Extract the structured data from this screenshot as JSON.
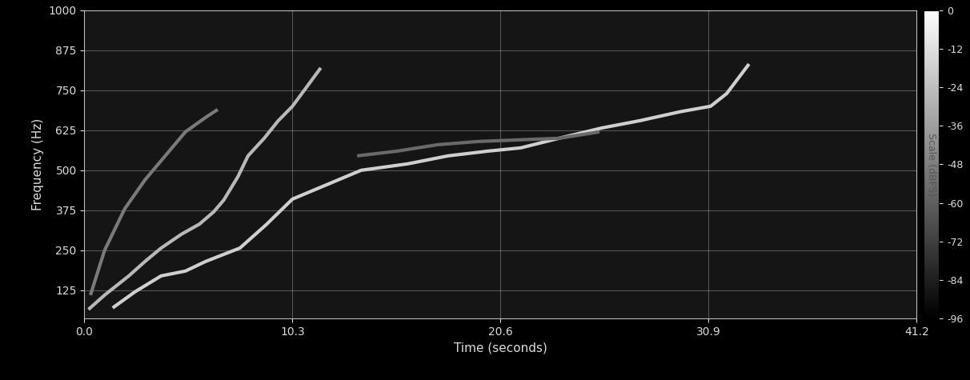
{
  "chart_data": {
    "type": "spectrogram",
    "x_label": "Time (seconds)",
    "y_label": "Frequency (Hz)",
    "xlim": [
      0,
      41.2
    ],
    "xticks": [
      {
        "value": 0,
        "label": "0.0"
      },
      10.3,
      20.6,
      30.9,
      41.2
    ],
    "ylim": [
      37,
      1000
    ],
    "yticks": [
      125,
      250,
      375,
      500,
      625,
      750,
      875,
      1000
    ],
    "grid": true,
    "series": [
      {
        "color": "#cfcfcf",
        "line_style": "solid",
        "x": [
          1.4,
          2.5,
          3.8,
          5.0,
          6.0,
          7.7,
          9.0,
          10.3,
          12.0,
          13.7,
          16.0,
          18.0,
          20.0,
          21.6,
          23.5,
          25.6,
          27.5,
          29.5,
          31.0,
          31.8,
          32.9
        ],
        "values": [
          70,
          120,
          170,
          185,
          215,
          257,
          330,
          410,
          455,
          500,
          520,
          545,
          560,
          570,
          600,
          632,
          655,
          683,
          700,
          740,
          832
        ]
      },
      {
        "color": "#b8b8b8",
        "line_style": "solid",
        "x": [
          0.2,
          1.0,
          2.2,
          3.0,
          3.8,
          4.8,
          5.7,
          6.4,
          6.9,
          7.6,
          8.1,
          8.9,
          9.6,
          10.3,
          11.0,
          11.7
        ],
        "values": [
          65,
          110,
          170,
          215,
          257,
          300,
          332,
          370,
          407,
          480,
          545,
          600,
          655,
          700,
          760,
          820
        ]
      },
      {
        "color": "#7a7a7a",
        "line_style": "solid",
        "x": [
          0.3,
          1.0,
          2.0,
          3.0,
          4.0,
          5.0,
          6.0,
          6.6
        ],
        "values": [
          110,
          250,
          380,
          470,
          545,
          620,
          665,
          690
        ]
      },
      {
        "color": "#6a6a6a",
        "line_style": "solid",
        "x": [
          13.5,
          15.5,
          17.5,
          19.5,
          21.5,
          23.5,
          25.5
        ],
        "values": [
          545,
          560,
          580,
          590,
          595,
          600,
          620
        ]
      }
    ],
    "colorbar": {
      "label": "Scale (dBFS)",
      "lim": [
        -96,
        0
      ],
      "ticks": [
        0,
        -12,
        -24,
        -36,
        -48,
        -60,
        -72,
        -84,
        -96
      ]
    }
  }
}
